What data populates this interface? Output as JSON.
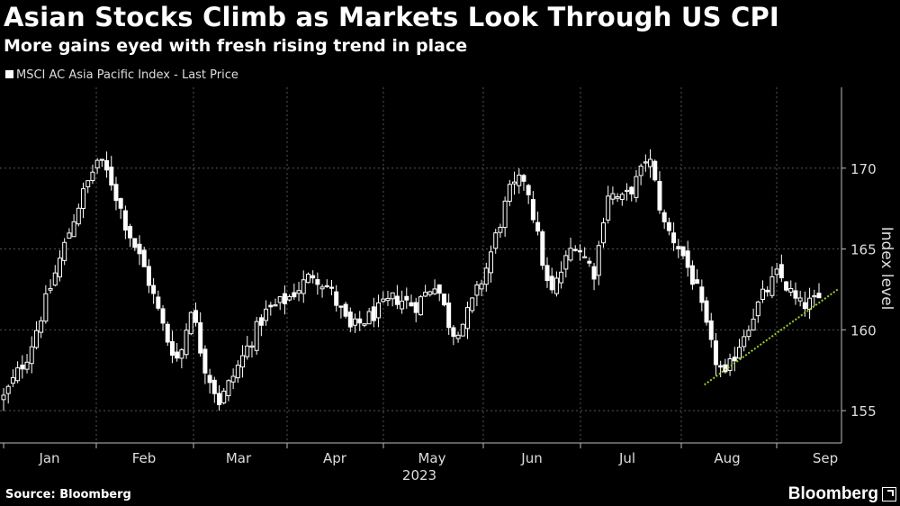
{
  "header": {
    "title": "Asian Stocks Climb as Markets Look Through US CPI",
    "subtitle": "More gains eyed with fresh rising trend in place"
  },
  "footer": {
    "source": "Source: Bloomberg",
    "brand": "Bloomberg"
  },
  "colors": {
    "background": "#000000",
    "candle": "#ffffff",
    "grid": "#555555",
    "trendline": "#9acd32"
  },
  "chart_data": {
    "type": "candlestick",
    "legend": [
      "MSCI AC Asia Pacific Index - Last Price"
    ],
    "legend_position": "top-left",
    "ylabel": "Index level",
    "xlabel": "2023",
    "ylim": [
      153,
      175
    ],
    "yticks": [
      155,
      160,
      165,
      170
    ],
    "months": [
      "Jan",
      "Feb",
      "Mar",
      "Apr",
      "May",
      "Jun",
      "Jul",
      "Aug",
      "Sep"
    ],
    "grid": true,
    "series": [
      {
        "name": "MSCI AC Asia Pacific Index - Last Price",
        "trading_days": 175,
        "close_anchors": [
          [
            0,
            155.8
          ],
          [
            6,
            158.5
          ],
          [
            12,
            163.0
          ],
          [
            18,
            167.5
          ],
          [
            23,
            170.5
          ],
          [
            26,
            169.5
          ],
          [
            30,
            166.5
          ],
          [
            35,
            163.5
          ],
          [
            40,
            159.5
          ],
          [
            43,
            158.0
          ],
          [
            46,
            161.5
          ],
          [
            49,
            158.0
          ],
          [
            53,
            155.5
          ],
          [
            58,
            158.0
          ],
          [
            64,
            161.0
          ],
          [
            70,
            162.0
          ],
          [
            76,
            163.5
          ],
          [
            80,
            162.5
          ],
          [
            85,
            160.0
          ],
          [
            91,
            161.0
          ],
          [
            96,
            162.0
          ],
          [
            101,
            161.5
          ],
          [
            106,
            163.0
          ],
          [
            110,
            159.8
          ],
          [
            113,
            160.5
          ],
          [
            118,
            163.5
          ],
          [
            124,
            168.5
          ],
          [
            128,
            169.5
          ],
          [
            134,
            162.0
          ],
          [
            140,
            165.5
          ],
          [
            145,
            163.5
          ],
          [
            148,
            168.5
          ],
          [
            152,
            168.0
          ],
          [
            156,
            169.5
          ],
          [
            158,
            171.0
          ],
          [
            162,
            166.5
          ],
          [
            166,
            165.0
          ],
          [
            170,
            162.5
          ],
          [
            174,
            158.5
          ],
          [
            177,
            157.0
          ],
          [
            181,
            159.5
          ],
          [
            186,
            162.0
          ],
          [
            190,
            163.5
          ],
          [
            195,
            161.5
          ],
          [
            200,
            161.8
          ]
        ],
        "anchor_x_scale": 200
      },
      {
        "name": "trend",
        "type": "line",
        "style": "dotted",
        "points": [
          [
            "2023-08-10",
            156.6
          ],
          [
            "2023-09-14",
            162.3
          ]
        ]
      }
    ]
  }
}
